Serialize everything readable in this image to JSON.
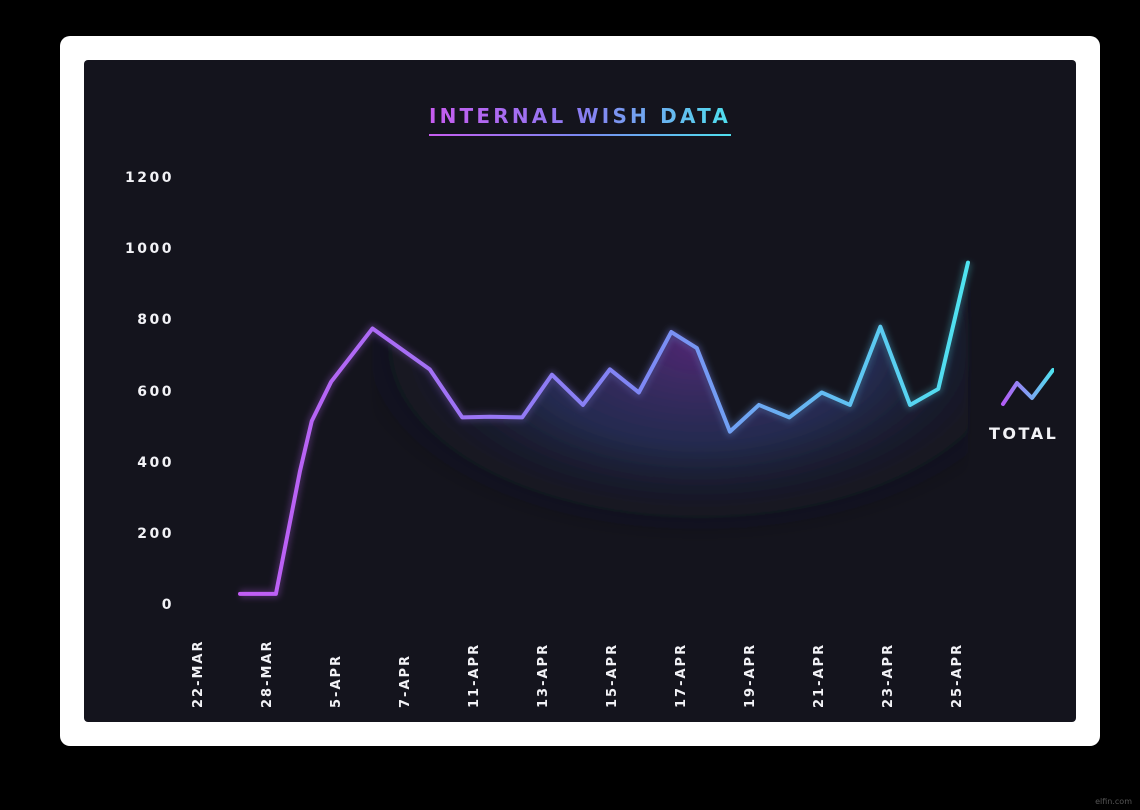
{
  "title": "INTERNAL WISH DATA",
  "colors": {
    "background": "#000000",
    "card": "#ffffff",
    "panel": "#14141d",
    "line_start": "#c45cf5",
    "line_mid": "#7f86f5",
    "line_end": "#4fe3f0",
    "text": "#f2f2f6"
  },
  "legend": {
    "label": "TOTAL",
    "icon": "trend-line-icon"
  },
  "watermark": "elfin.com",
  "y_ticks": [
    "0",
    "200",
    "400",
    "600",
    "800",
    "1000",
    "1200"
  ],
  "x_ticks": [
    "22-MAR",
    "28-MAR",
    "5-APR",
    "7-APR",
    "11-APR",
    "13-APR",
    "15-APR",
    "17-APR",
    "19-APR",
    "21-APR",
    "23-APR",
    "25-APR"
  ],
  "chart_data": {
    "type": "line",
    "title": "INTERNAL WISH DATA",
    "xlabel": "",
    "ylabel": "",
    "ylim": [
      0,
      1200
    ],
    "grid": true,
    "legend_position": "right",
    "x_tick_labels": [
      "22-MAR",
      "28-MAR",
      "5-APR",
      "7-APR",
      "11-APR",
      "13-APR",
      "15-APR",
      "17-APR",
      "19-APR",
      "21-APR",
      "23-APR",
      "25-APR"
    ],
    "series": [
      {
        "name": "TOTAL",
        "points": [
          {
            "x": 0.58,
            "y": 34
          },
          {
            "x": 1.1,
            "y": 34
          },
          {
            "x": 1.45,
            "y": 380
          },
          {
            "x": 1.62,
            "y": 520
          },
          {
            "x": 1.9,
            "y": 630
          },
          {
            "x": 2.5,
            "y": 780
          },
          {
            "x": 3.33,
            "y": 665
          },
          {
            "x": 3.8,
            "y": 530
          },
          {
            "x": 4.2,
            "y": 532
          },
          {
            "x": 4.67,
            "y": 530
          },
          {
            "x": 5.1,
            "y": 650
          },
          {
            "x": 5.55,
            "y": 565
          },
          {
            "x": 5.94,
            "y": 665
          },
          {
            "x": 6.36,
            "y": 600
          },
          {
            "x": 6.83,
            "y": 770
          },
          {
            "x": 7.2,
            "y": 725
          },
          {
            "x": 7.68,
            "y": 490
          },
          {
            "x": 8.1,
            "y": 565
          },
          {
            "x": 8.54,
            "y": 530
          },
          {
            "x": 9.01,
            "y": 600
          },
          {
            "x": 9.42,
            "y": 565
          },
          {
            "x": 9.86,
            "y": 785
          },
          {
            "x": 10.29,
            "y": 565
          },
          {
            "x": 10.7,
            "y": 610
          },
          {
            "x": 11.13,
            "y": 965
          }
        ]
      }
    ]
  }
}
